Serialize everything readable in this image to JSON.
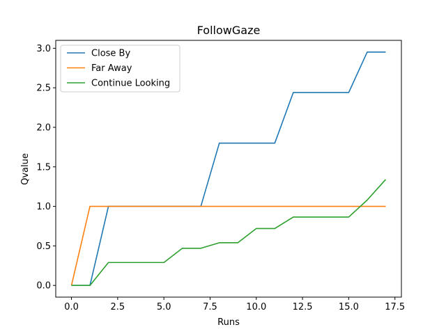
{
  "chart_data": {
    "type": "line",
    "title": "FollowGaze",
    "xlabel": "Runs",
    "ylabel": "Qvalue",
    "xlim": [
      -0.85,
      17.85
    ],
    "ylim": [
      -0.148,
      3.1
    ],
    "xticks": [
      0.0,
      2.5,
      5.0,
      7.5,
      10.0,
      12.5,
      15.0,
      17.5
    ],
    "xtick_labels": [
      "0.0",
      "2.5",
      "5.0",
      "7.5",
      "10.0",
      "12.5",
      "15.0",
      "17.5"
    ],
    "yticks": [
      0.0,
      0.5,
      1.0,
      1.5,
      2.0,
      2.5,
      3.0
    ],
    "ytick_labels": [
      "0.0",
      "0.5",
      "1.0",
      "1.5",
      "2.0",
      "2.5",
      "3.0"
    ],
    "grid": false,
    "legend_position": "upper-left",
    "x": [
      0,
      1,
      2,
      3,
      4,
      5,
      6,
      7,
      8,
      9,
      10,
      11,
      12,
      13,
      14,
      15,
      16,
      17
    ],
    "series": [
      {
        "name": "Close By",
        "color": "#1f77b4",
        "values": [
          0,
          0,
          1.0,
          1.0,
          1.0,
          1.0,
          1.0,
          1.0,
          1.8,
          1.8,
          1.8,
          1.8,
          2.44,
          2.44,
          2.44,
          2.44,
          2.952,
          2.952
        ]
      },
      {
        "name": "Far Away",
        "color": "#ff7f0e",
        "values": [
          0,
          1.0,
          1.0,
          1.0,
          1.0,
          1.0,
          1.0,
          1.0,
          1.0,
          1.0,
          1.0,
          1.0,
          1.0,
          1.0,
          1.0,
          1.0,
          1.0,
          1.0
        ]
      },
      {
        "name": "Continue Looking",
        "color": "#2ca02c",
        "values": [
          0,
          0,
          0.29,
          0.29,
          0.29,
          0.29,
          0.47,
          0.47,
          0.54,
          0.54,
          0.72,
          0.72,
          0.865,
          0.865,
          0.865,
          0.865,
          1.08,
          1.34
        ]
      }
    ]
  }
}
